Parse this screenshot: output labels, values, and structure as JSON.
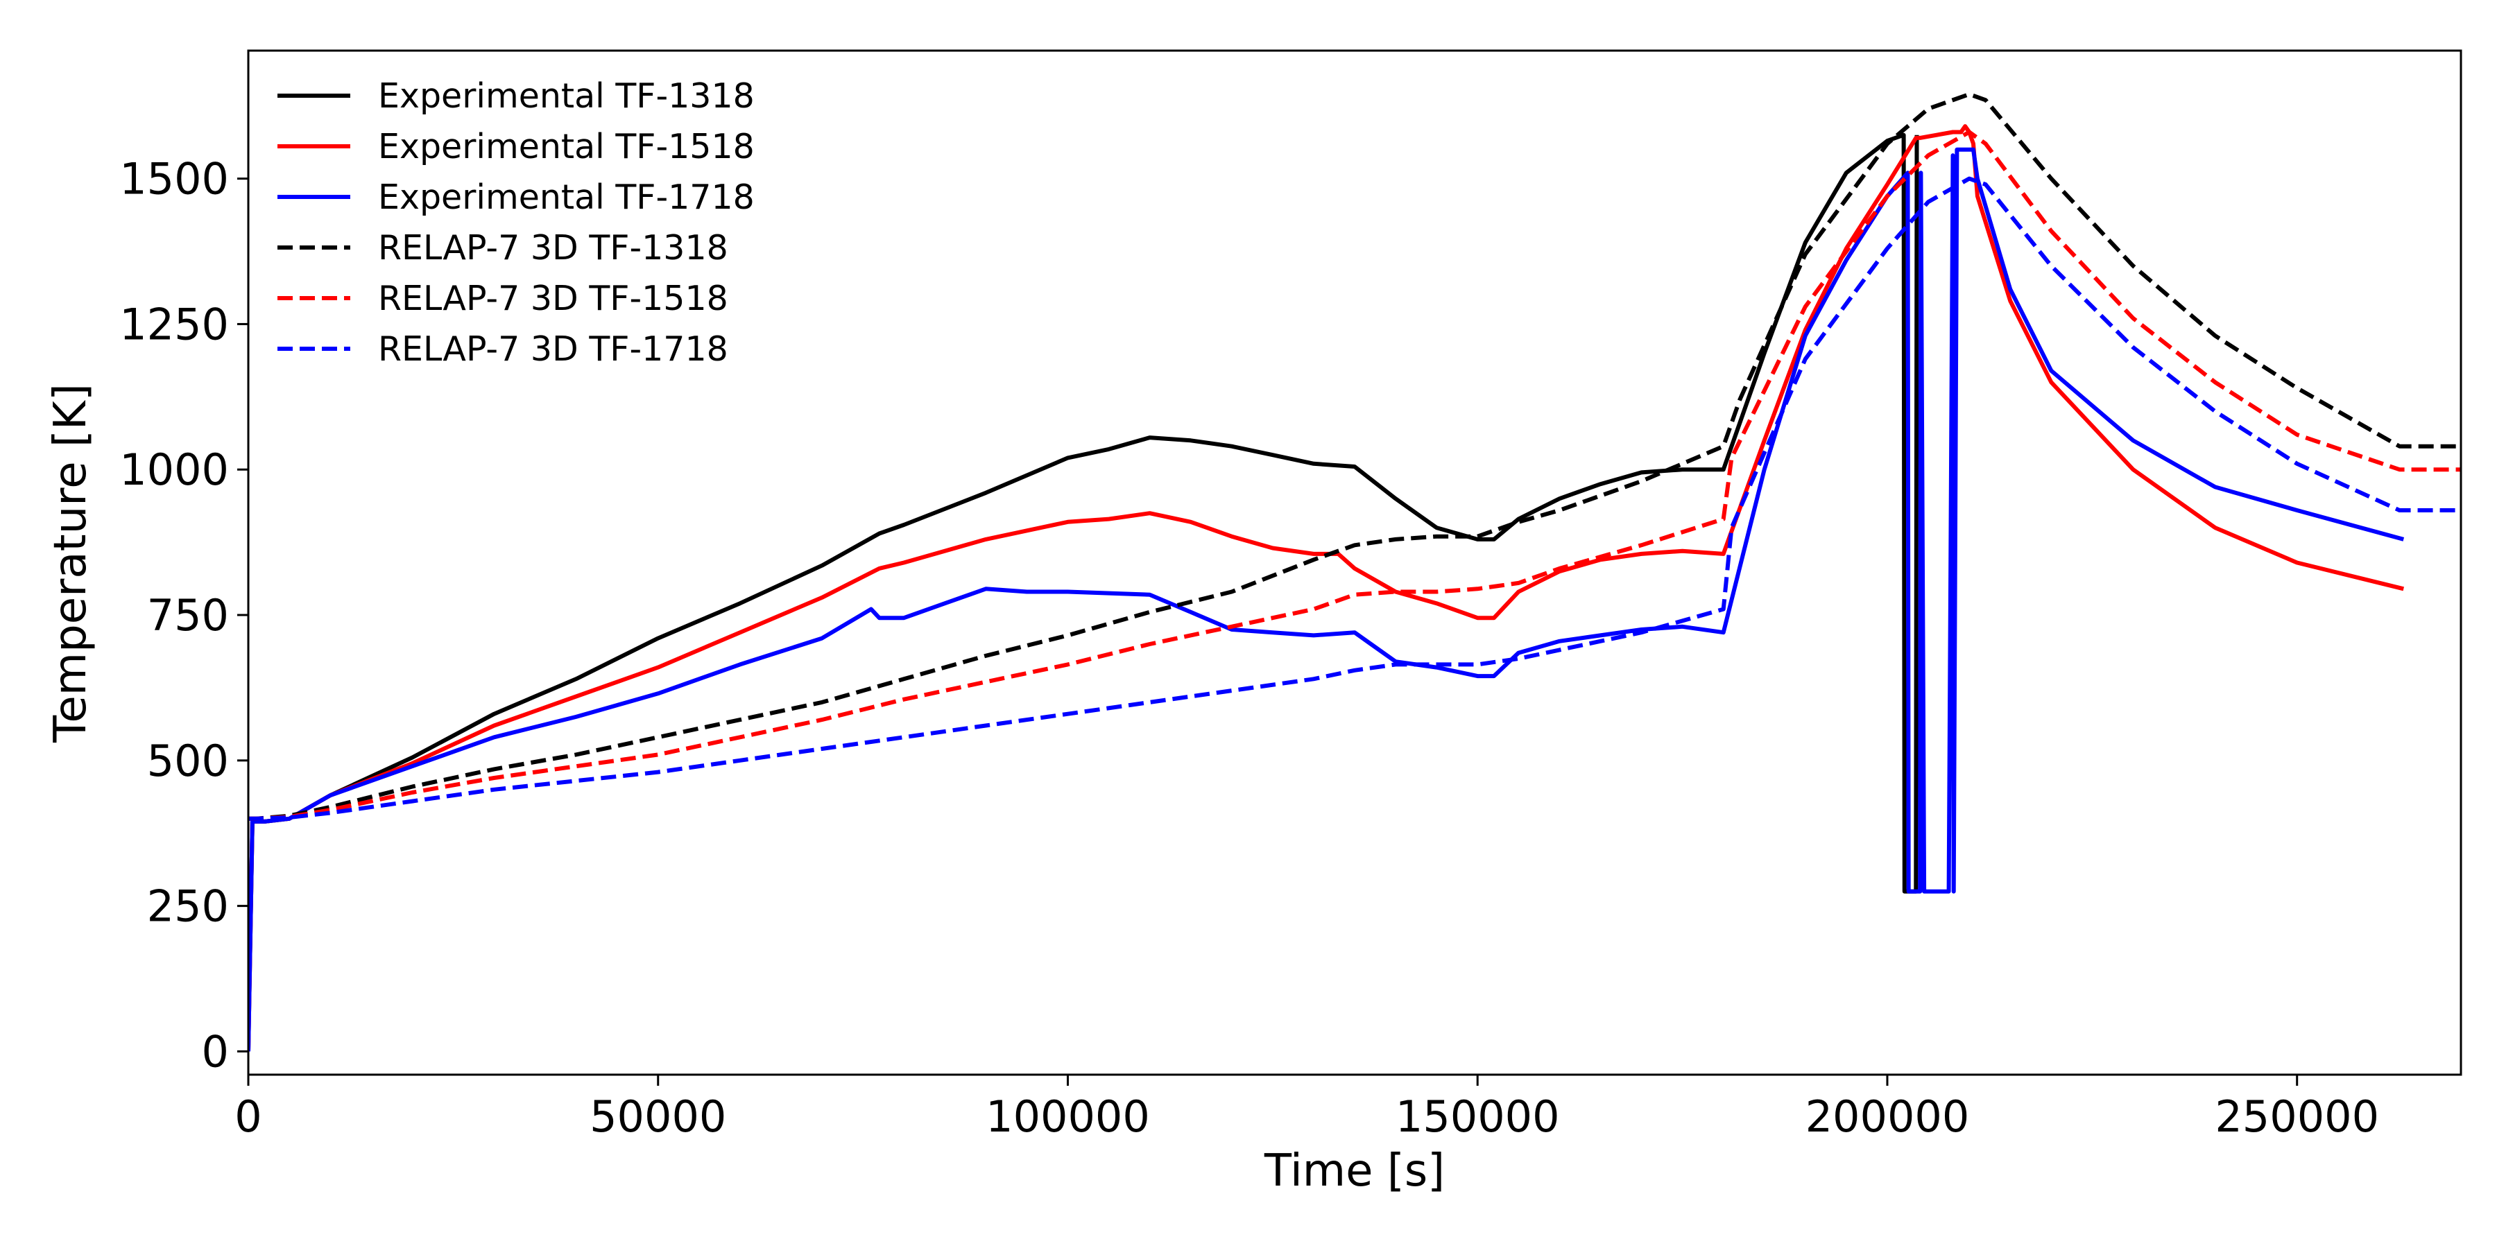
{
  "chart_data": {
    "type": "line",
    "title": "",
    "xlabel": "Time [s]",
    "ylabel": "Temperature [K]",
    "xlim": [
      0,
      270000
    ],
    "ylim": [
      -40,
      1720
    ],
    "xticks": [
      0,
      50000,
      100000,
      150000,
      200000,
      250000
    ],
    "yticks": [
      0,
      250,
      500,
      750,
      1000,
      1250,
      1500
    ],
    "xtick_labels": [
      "0",
      "50000",
      "100000",
      "150000",
      "200000",
      "250000"
    ],
    "ytick_labels": [
      "0",
      "250",
      "500",
      "750",
      "1000",
      "1250",
      "1500"
    ],
    "grid": false,
    "legend_position": "top-left",
    "series": [
      {
        "name": "Experimental TF-1318",
        "color": "#000000",
        "style": "solid",
        "x": [
          0,
          500,
          2000,
          5000,
          10000,
          20000,
          30000,
          40000,
          50000,
          60000,
          70000,
          77000,
          80000,
          90000,
          100000,
          105000,
          110000,
          115000,
          120000,
          125000,
          130000,
          135000,
          140000,
          145000,
          150000,
          152000,
          155000,
          160000,
          165000,
          170000,
          175000,
          180000,
          185000,
          190000,
          195000,
          200000,
          202000,
          202100,
          203500,
          203600
        ],
        "y": [
          0,
          395,
          395,
          400,
          440,
          505,
          580,
          640,
          710,
          770,
          835,
          890,
          905,
          960,
          1020,
          1035,
          1055,
          1050,
          1040,
          1025,
          1010,
          1005,
          950,
          900,
          880,
          880,
          915,
          950,
          975,
          995,
          1000,
          1000,
          1200,
          1390,
          1510,
          1565,
          1575,
          275,
          275,
          1575
        ]
      },
      {
        "name": "Experimental TF-1518",
        "color": "#ff0000",
        "style": "solid",
        "x": [
          0,
          500,
          2000,
          5000,
          10000,
          20000,
          30000,
          40000,
          50000,
          60000,
          70000,
          77000,
          80000,
          90000,
          100000,
          105000,
          110000,
          115000,
          120000,
          125000,
          130000,
          133000,
          135000,
          140000,
          145000,
          150000,
          152000,
          155000,
          160000,
          165000,
          170000,
          175000,
          180000,
          185000,
          190000,
          195000,
          200000,
          203500,
          204000,
          208000,
          209000,
          209500,
          210000,
          210500,
          211000,
          215000,
          220000,
          230000,
          240000,
          250000,
          263000
        ],
        "y": [
          0,
          395,
          395,
          400,
          440,
          495,
          560,
          610,
          660,
          720,
          780,
          830,
          840,
          880,
          910,
          915,
          925,
          910,
          885,
          865,
          855,
          855,
          830,
          790,
          770,
          745,
          745,
          790,
          825,
          845,
          855,
          860,
          855,
          1050,
          1240,
          1380,
          1490,
          1570,
          1570,
          1580,
          1580,
          1590,
          1580,
          1560,
          1470,
          1290,
          1150,
          1000,
          900,
          840,
          795
        ]
      },
      {
        "name": "Experimental TF-1718",
        "color": "#0000ff",
        "style": "solid",
        "x": [
          0,
          500,
          2000,
          5000,
          10000,
          20000,
          30000,
          40000,
          50000,
          60000,
          70000,
          76000,
          77000,
          80000,
          85000,
          90000,
          95000,
          100000,
          110000,
          115000,
          120000,
          125000,
          130000,
          135000,
          137000,
          140000,
          145000,
          150000,
          152000,
          155000,
          160000,
          165000,
          170000,
          175000,
          180000,
          185000,
          190000,
          195000,
          200000,
          202500,
          202600,
          204000,
          204100,
          204500,
          207500,
          208000,
          208100,
          208500,
          210500,
          211000,
          215000,
          220000,
          230000,
          240000,
          250000,
          263000
        ],
        "y": [
          0,
          395,
          395,
          400,
          440,
          490,
          540,
          575,
          615,
          665,
          710,
          760,
          745,
          745,
          770,
          795,
          790,
          790,
          785,
          755,
          725,
          720,
          715,
          720,
          700,
          670,
          660,
          645,
          645,
          685,
          705,
          715,
          725,
          730,
          720,
          1000,
          1230,
          1360,
          1470,
          1510,
          275,
          275,
          1510,
          275,
          275,
          1540,
          275,
          1550,
          1550,
          1500,
          1310,
          1170,
          1050,
          970,
          930,
          880
        ]
      },
      {
        "name": "RELAP-7 3D TF-1318",
        "color": "#000000",
        "style": "dashed",
        "x": [
          0,
          1000,
          5000,
          10000,
          20000,
          30000,
          40000,
          50000,
          60000,
          70000,
          80000,
          90000,
          100000,
          110000,
          120000,
          130000,
          135000,
          140000,
          145000,
          150000,
          155000,
          160000,
          170000,
          180000,
          182000,
          190000,
          200000,
          205000,
          210000,
          212000,
          220000,
          230000,
          240000,
          250000,
          262500,
          270000
        ],
        "y": [
          400,
          400,
          405,
          420,
          455,
          485,
          510,
          540,
          570,
          600,
          640,
          680,
          715,
          755,
          790,
          845,
          870,
          880,
          885,
          885,
          910,
          930,
          980,
          1040,
          1120,
          1370,
          1560,
          1620,
          1645,
          1635,
          1500,
          1350,
          1230,
          1140,
          1040,
          1040
        ]
      },
      {
        "name": "RELAP-7 3D TF-1518",
        "color": "#ff0000",
        "style": "dashed",
        "x": [
          0,
          1000,
          5000,
          10000,
          20000,
          30000,
          40000,
          50000,
          60000,
          70000,
          80000,
          90000,
          100000,
          110000,
          120000,
          130000,
          135000,
          140000,
          145000,
          150000,
          155000,
          160000,
          170000,
          180000,
          181000,
          190000,
          200000,
          205000,
          210000,
          212000,
          220000,
          230000,
          240000,
          250000,
          262500,
          270000
        ],
        "y": [
          400,
          400,
          403,
          415,
          445,
          470,
          490,
          510,
          540,
          570,
          605,
          635,
          665,
          700,
          730,
          760,
          785,
          790,
          790,
          795,
          805,
          830,
          870,
          915,
          1020,
          1280,
          1470,
          1540,
          1580,
          1560,
          1410,
          1260,
          1150,
          1060,
          1000,
          1000
        ]
      },
      {
        "name": "RELAP-7 3D TF-1718",
        "color": "#0000ff",
        "style": "dashed",
        "x": [
          0,
          1000,
          5000,
          10000,
          20000,
          30000,
          40000,
          50000,
          60000,
          70000,
          80000,
          90000,
          100000,
          110000,
          120000,
          130000,
          135000,
          140000,
          145000,
          150000,
          155000,
          160000,
          170000,
          180000,
          181000,
          190000,
          200000,
          205000,
          210000,
          212000,
          220000,
          230000,
          240000,
          250000,
          262500,
          270000
        ],
        "y": [
          400,
          400,
          402,
          410,
          430,
          450,
          465,
          480,
          500,
          520,
          540,
          560,
          580,
          600,
          620,
          640,
          655,
          665,
          665,
          665,
          675,
          690,
          720,
          760,
          900,
          1190,
          1380,
          1460,
          1500,
          1490,
          1350,
          1210,
          1100,
          1010,
          930,
          930
        ]
      }
    ]
  }
}
